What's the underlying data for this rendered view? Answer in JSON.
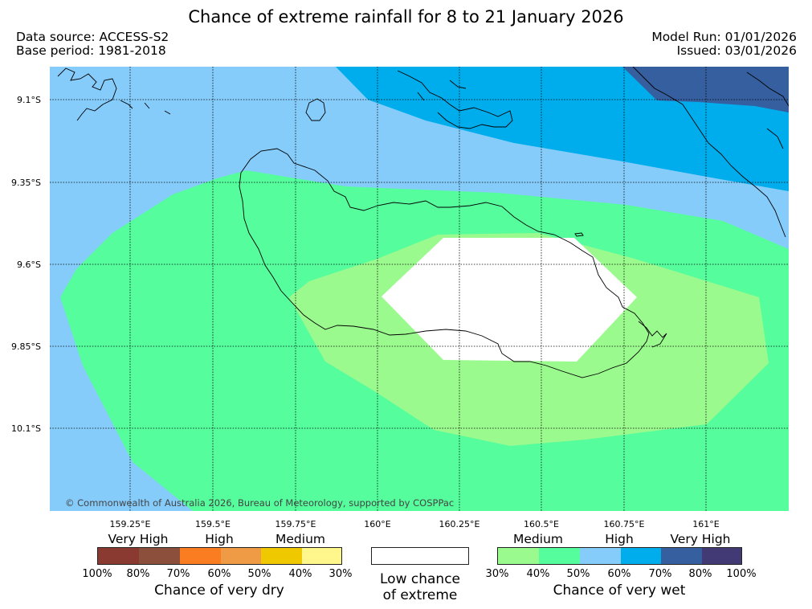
{
  "title": "Chance of extreme rainfall for 8 to 21 January 2026",
  "data_source": "Data source: ACCESS-S2",
  "base_period": "Base period: 1981-2018",
  "model_run": "Model Run: 01/01/2026",
  "issued": "Issued: 03/01/2026",
  "map": {
    "lon_ticks": [
      "159.25°E",
      "159.5°E",
      "159.75°E",
      "160°E",
      "160.25°E",
      "160.5°E",
      "160.75°E",
      "161°E"
    ],
    "lat_ticks": [
      "9.1°S",
      "9.35°S",
      "9.6°S",
      "9.85°S",
      "10.1°S"
    ],
    "copyright": "© Commonwealth of Australia 2026, Bureau of Meteorology, supported by COSPPac"
  },
  "legend": {
    "dry": {
      "headers": [
        "Very High",
        "High",
        "Medium"
      ],
      "ticks": [
        "100%",
        "80%",
        "70%",
        "60%",
        "50%",
        "40%",
        "30%"
      ],
      "colors": [
        "#8b3a31",
        "#8b4f3c",
        "#fb7d21",
        "#ef9a44",
        "#f0c800",
        "#fff68c"
      ],
      "caption": "Chance of very dry"
    },
    "low": {
      "line1": "Low chance",
      "line2": "of extreme"
    },
    "wet": {
      "headers": [
        "Medium",
        "High",
        "Very High"
      ],
      "ticks": [
        "30%",
        "40%",
        "50%",
        "60%",
        "70%",
        "80%",
        "100%"
      ],
      "colors": [
        "#9bfa8e",
        "#55fd9c",
        "#86ccfb",
        "#00adec",
        "#355f9f",
        "#423a75"
      ],
      "caption": "Chance of very wet"
    }
  }
}
